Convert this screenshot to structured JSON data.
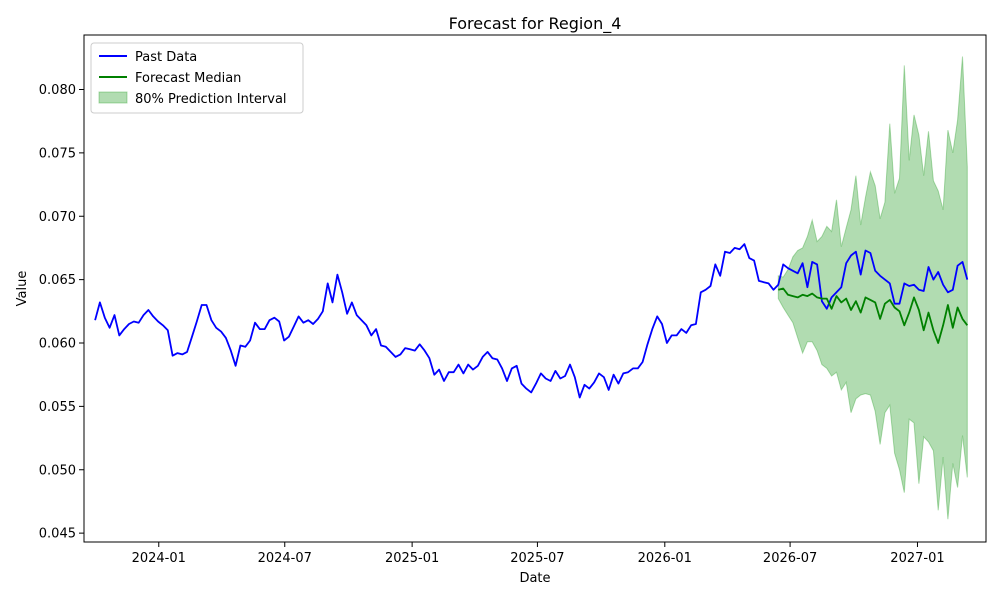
{
  "chart_data": {
    "type": "line",
    "title": "Forecast for Region_4",
    "xlabel": "Date",
    "ylabel": "Value",
    "x_range": [
      "2023-09-15",
      "2027-04-10"
    ],
    "ylim": [
      0.0443,
      0.0843
    ],
    "x_ticks": [
      "2024-01-01",
      "2024-07-01",
      "2025-01-01",
      "2025-07-01",
      "2026-01-01",
      "2026-07-01",
      "2027-01-01"
    ],
    "x_tick_labels": [
      "2024-01",
      "2024-07",
      "2025-01",
      "2025-07",
      "2026-01",
      "2026-07",
      "2027-01"
    ],
    "y_ticks": [
      0.045,
      0.05,
      0.055,
      0.06,
      0.065,
      0.07,
      0.075,
      0.08
    ],
    "y_tick_labels": [
      "0.045",
      "0.050",
      "0.055",
      "0.060",
      "0.065",
      "0.070",
      "0.075",
      "0.080"
    ],
    "grid": false,
    "legend": {
      "position": "top-left",
      "entries": [
        "Past Data",
        "Forecast Median",
        "80% Prediction Interval"
      ]
    },
    "series": [
      {
        "name": "Past Data",
        "color": "#0000ff",
        "start_date": "2023-10-01",
        "values": [
          0.0618,
          0.0632,
          0.062,
          0.0612,
          0.0622,
          0.0606,
          0.0611,
          0.0615,
          0.0617,
          0.0616,
          0.0622,
          0.0626,
          0.0621,
          0.0617,
          0.0614,
          0.061,
          0.059,
          0.0592,
          0.0591,
          0.0593,
          0.0605,
          0.0617,
          0.063,
          0.063,
          0.0618,
          0.0612,
          0.0609,
          0.0604,
          0.0594,
          0.0582,
          0.0598,
          0.0597,
          0.0602,
          0.0616,
          0.0611,
          0.0611,
          0.0618,
          0.062,
          0.0617,
          0.0602,
          0.0605,
          0.0613,
          0.0621,
          0.0616,
          0.0618,
          0.0615,
          0.0619,
          0.0625,
          0.0647,
          0.0632,
          0.0654,
          0.064,
          0.0623,
          0.0632,
          0.0622,
          0.0618,
          0.0614,
          0.0606,
          0.0611,
          0.0598,
          0.0597,
          0.0593,
          0.0589,
          0.0591,
          0.0596,
          0.0595,
          0.0594,
          0.0599,
          0.0594,
          0.0588,
          0.0575,
          0.0579,
          0.057,
          0.0577,
          0.0577,
          0.0583,
          0.0576,
          0.0583,
          0.0579,
          0.0582,
          0.0589,
          0.0593,
          0.0588,
          0.0587,
          0.058,
          0.057,
          0.058,
          0.0582,
          0.0568,
          0.0564,
          0.0561,
          0.0568,
          0.0576,
          0.0572,
          0.057,
          0.0578,
          0.0572,
          0.0574,
          0.0583,
          0.0573,
          0.0557,
          0.0567,
          0.0564,
          0.0569,
          0.0576,
          0.0573,
          0.0563,
          0.0575,
          0.0568,
          0.0576,
          0.0577,
          0.058,
          0.058,
          0.0585,
          0.0599,
          0.0611,
          0.0621,
          0.0615,
          0.06,
          0.0606,
          0.0606,
          0.0611,
          0.0608,
          0.0614,
          0.0615,
          0.064,
          0.0642,
          0.0645,
          0.0662,
          0.0653,
          0.0672,
          0.0671,
          0.0675,
          0.0674,
          0.0678,
          0.0667,
          0.0665,
          0.0649,
          0.0648,
          0.0647,
          0.0642,
          0.0646,
          0.0662,
          0.0659,
          0.0657,
          0.0655,
          0.0663,
          0.0644,
          0.0664,
          0.0662,
          0.0633,
          0.0627,
          0.0636,
          0.064,
          0.0644,
          0.0663,
          0.0669,
          0.0672,
          0.0654,
          0.0673,
          0.0671,
          0.0657,
          0.0653,
          0.065,
          0.0647,
          0.0631,
          0.0631,
          0.0647,
          0.0645,
          0.0646,
          0.0642,
          0.0641,
          0.066,
          0.065,
          0.0656,
          0.0646,
          0.064,
          0.0642,
          0.0661,
          0.0664,
          0.065
        ]
      },
      {
        "name": "Forecast Median",
        "color": "#008000",
        "start_date": "2026-06-14",
        "values": [
          0.0642,
          0.0643,
          0.0638,
          0.0637,
          0.0636,
          0.0638,
          0.0637,
          0.0639,
          0.0636,
          0.0635,
          0.0635,
          0.0627,
          0.0637,
          0.0632,
          0.0635,
          0.0626,
          0.0633,
          0.0624,
          0.0636,
          0.0634,
          0.0632,
          0.0619,
          0.0631,
          0.0634,
          0.0628,
          0.0625,
          0.0614,
          0.0624,
          0.0636,
          0.0626,
          0.061,
          0.0624,
          0.061,
          0.06,
          0.0614,
          0.063,
          0.0612,
          0.0628,
          0.0619,
          0.0614
        ]
      }
    ],
    "interval": {
      "name": "80% Prediction Interval",
      "color": "#2ca02c",
      "start_date": "2026-06-14",
      "lower": [
        0.0635,
        0.0628,
        0.0622,
        0.0616,
        0.0604,
        0.0592,
        0.0601,
        0.0601,
        0.0594,
        0.0583,
        0.058,
        0.0574,
        0.0577,
        0.0563,
        0.0569,
        0.0545,
        0.0556,
        0.0559,
        0.056,
        0.0559,
        0.0546,
        0.052,
        0.0545,
        0.0551,
        0.0513,
        0.05,
        0.0482,
        0.054,
        0.0537,
        0.0489,
        0.0526,
        0.0522,
        0.0515,
        0.0468,
        0.051,
        0.0461,
        0.0505,
        0.0486,
        0.0527,
        0.0494
      ],
      "upper": [
        0.0653,
        0.0652,
        0.0658,
        0.0668,
        0.0673,
        0.0675,
        0.0684,
        0.0697,
        0.068,
        0.0684,
        0.0692,
        0.0688,
        0.0713,
        0.0676,
        0.0691,
        0.0705,
        0.0732,
        0.0693,
        0.0715,
        0.0735,
        0.0724,
        0.0698,
        0.0711,
        0.0773,
        0.0718,
        0.073,
        0.0819,
        0.0744,
        0.078,
        0.0764,
        0.0732,
        0.0767,
        0.0728,
        0.072,
        0.0705,
        0.0768,
        0.075,
        0.0776,
        0.0826,
        0.0739
      ]
    }
  }
}
